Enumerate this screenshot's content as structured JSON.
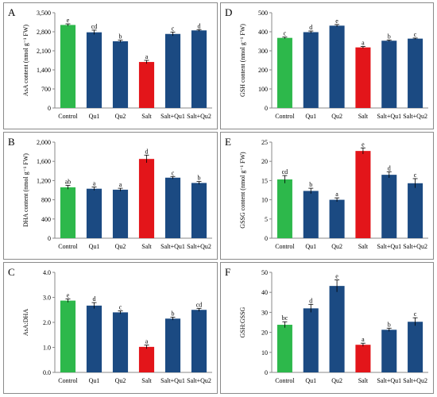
{
  "colors": {
    "control": "#2db84b",
    "salt": "#e3151a",
    "treatment": "#1b4a82",
    "error_bar": "#000000",
    "axis": "#8a8a8a"
  },
  "chart_data": [
    {
      "id": "A",
      "letter": "A",
      "type": "bar",
      "categories": [
        "Control",
        "Qu1",
        "Qu2",
        "Salt",
        "Salt+Qu1",
        "Salt+Qu2"
      ],
      "values": [
        3050,
        2780,
        2450,
        1690,
        2720,
        2850
      ],
      "errors": [
        40,
        80,
        40,
        60,
        70,
        30
      ],
      "letters": [
        "e",
        "cd",
        "b",
        "a",
        "c",
        "d"
      ],
      "ylabel": "AsA content (nmol g⁻¹ FW)",
      "ylim": [
        0,
        3500
      ],
      "yticks": [
        0,
        700,
        1400,
        2100,
        2800,
        3500
      ],
      "ytick_labels": [
        "0",
        "700",
        "1,400",
        "2,100",
        "2,800",
        "3,500"
      ],
      "bar_colors": [
        "control",
        "treatment",
        "treatment",
        "salt",
        "treatment",
        "treatment"
      ],
      "grid": false
    },
    {
      "id": "D",
      "letter": "D",
      "type": "bar",
      "categories": [
        "Control",
        "Qu1",
        "Qu2",
        "Salt",
        "Salt+Qu1",
        "Salt+Qu2"
      ],
      "values": [
        368,
        398,
        432,
        318,
        353,
        364
      ],
      "errors": [
        4,
        6,
        6,
        5,
        4,
        3
      ],
      "letters": [
        "c",
        "d",
        "e",
        "a",
        "b",
        "c"
      ],
      "ylabel": "GSH content (nmol g⁻¹ FW)",
      "ylim": [
        0,
        500
      ],
      "yticks": [
        0,
        100,
        200,
        300,
        400,
        500
      ],
      "ytick_labels": [
        "0",
        "100",
        "200",
        "300",
        "400",
        "500"
      ],
      "bar_colors": [
        "control",
        "treatment",
        "treatment",
        "salt",
        "treatment",
        "treatment"
      ],
      "grid": false
    },
    {
      "id": "B",
      "letter": "B",
      "type": "bar",
      "categories": [
        "Control",
        "Qu1",
        "Qu2",
        "Salt",
        "Salt+Qu1",
        "Salt+Qu2"
      ],
      "values": [
        1060,
        1030,
        1010,
        1650,
        1260,
        1150
      ],
      "errors": [
        40,
        35,
        30,
        80,
        25,
        30
      ],
      "letters": [
        "ab",
        "a",
        "a",
        "d",
        "c",
        "b"
      ],
      "ylabel": "DHA content (nmol g⁻¹ FW)",
      "ylim": [
        0,
        2000
      ],
      "yticks": [
        0,
        400,
        800,
        1200,
        1600,
        2000
      ],
      "ytick_labels": [
        "0",
        "400",
        "800",
        "1,200",
        "1,600",
        "2,000"
      ],
      "bar_colors": [
        "control",
        "treatment",
        "treatment",
        "salt",
        "treatment",
        "treatment"
      ],
      "grid": false
    },
    {
      "id": "E",
      "letter": "E",
      "type": "bar",
      "categories": [
        "Control",
        "Qu1",
        "Qu2",
        "Salt",
        "Salt+Qu1",
        "Salt+Qu2"
      ],
      "values": [
        15.3,
        12.3,
        10.0,
        22.7,
        16.5,
        14.3
      ],
      "errors": [
        1.0,
        0.7,
        0.5,
        0.8,
        0.8,
        1.2
      ],
      "letters": [
        "cd",
        "b",
        "a",
        "e",
        "d",
        "c"
      ],
      "ylabel": "GSSG content (nmol g⁻¹ FW)",
      "ylim": [
        0,
        25
      ],
      "yticks": [
        0,
        5,
        10,
        15,
        20,
        25
      ],
      "ytick_labels": [
        "0",
        "5",
        "10",
        "15",
        "20",
        "25"
      ],
      "bar_colors": [
        "control",
        "treatment",
        "treatment",
        "salt",
        "treatment",
        "treatment"
      ],
      "grid": false
    },
    {
      "id": "C",
      "letter": "C",
      "type": "bar",
      "categories": [
        "Control",
        "Qu1",
        "Qu2",
        "Salt",
        "Salt+Qu1",
        "Salt+Qu2"
      ],
      "values": [
        2.87,
        2.67,
        2.4,
        1.02,
        2.15,
        2.5
      ],
      "errors": [
        0.07,
        0.12,
        0.06,
        0.07,
        0.06,
        0.06
      ],
      "letters": [
        "e",
        "d",
        "c",
        "a",
        "b",
        "cd"
      ],
      "ylabel": "AsA:DHA",
      "ylim": [
        0,
        4
      ],
      "yticks": [
        0,
        1,
        2,
        3,
        4
      ],
      "ytick_labels": [
        "0.0",
        "1.0",
        "2.0",
        "3.0",
        "4.0"
      ],
      "bar_colors": [
        "control",
        "treatment",
        "treatment",
        "salt",
        "treatment",
        "treatment"
      ],
      "grid": false
    },
    {
      "id": "F",
      "letter": "F",
      "type": "bar",
      "categories": [
        "Control",
        "Qu1",
        "Qu2",
        "Salt",
        "Salt+Qu1",
        "Salt+Qu2"
      ],
      "values": [
        23.8,
        32.0,
        43.2,
        13.8,
        21.3,
        25.3
      ],
      "errors": [
        1.5,
        2.0,
        3.0,
        0.8,
        0.8,
        2.0
      ],
      "letters": [
        "bc",
        "d",
        "e",
        "a",
        "b",
        "c"
      ],
      "ylabel": "GSH:GSSG",
      "ylim": [
        0,
        50
      ],
      "yticks": [
        0,
        10,
        20,
        30,
        40,
        50
      ],
      "ytick_labels": [
        "0",
        "10",
        "20",
        "30",
        "40",
        "50"
      ],
      "bar_colors": [
        "control",
        "treatment",
        "treatment",
        "salt",
        "treatment",
        "treatment"
      ],
      "grid": false
    }
  ]
}
